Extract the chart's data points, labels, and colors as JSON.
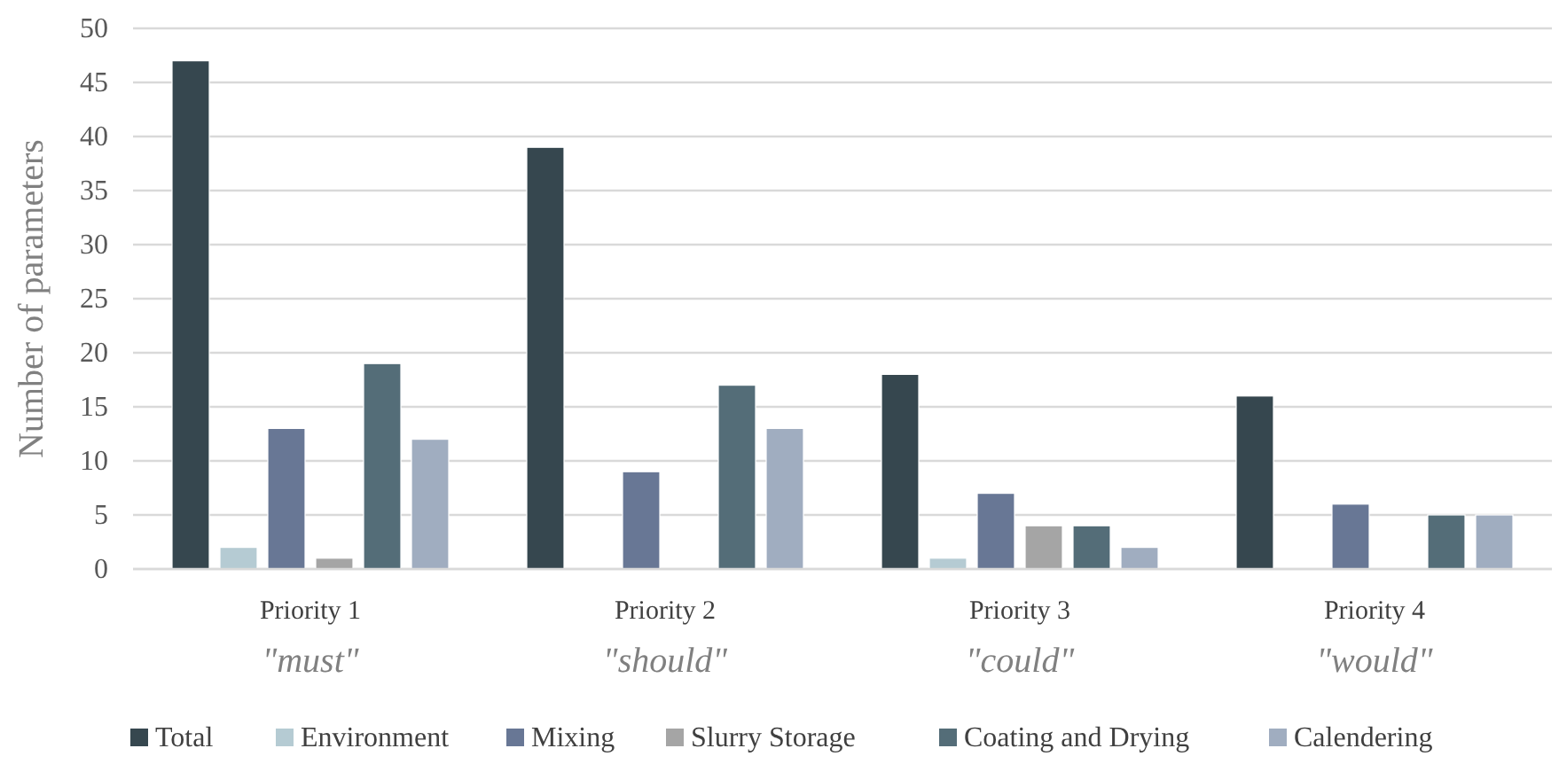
{
  "chart_data": {
    "type": "bar",
    "ylabel": "Number of parameters",
    "categories": [
      "Priority 1",
      "Priority 2",
      "Priority 3",
      "Priority 4"
    ],
    "series": [
      {
        "name": "Total",
        "color": "#36474f",
        "values": [
          47,
          39,
          18,
          16
        ]
      },
      {
        "name": "Environment",
        "color": "#b5cbd3",
        "values": [
          2,
          0,
          1,
          0
        ]
      },
      {
        "name": "Mixing",
        "color": "#687795",
        "values": [
          13,
          9,
          7,
          6
        ]
      },
      {
        "name": "Slurry Storage",
        "color": "#a5a5a5",
        "values": [
          1,
          0,
          4,
          0
        ]
      },
      {
        "name": "Coating and Drying",
        "color": "#546d78",
        "values": [
          19,
          17,
          4,
          5
        ]
      },
      {
        "name": "Calendering",
        "color": "#a0adc0",
        "values": [
          12,
          13,
          2,
          5
        ]
      }
    ],
    "annotations": [
      "\"must\"",
      "\"should\"",
      "\"could\"",
      "\"would\""
    ],
    "ylim": [
      0,
      50
    ],
    "yticks": [
      0,
      5,
      10,
      15,
      20,
      25,
      30,
      35,
      40,
      45,
      50
    ],
    "grid": "y",
    "legend": "bottom"
  }
}
